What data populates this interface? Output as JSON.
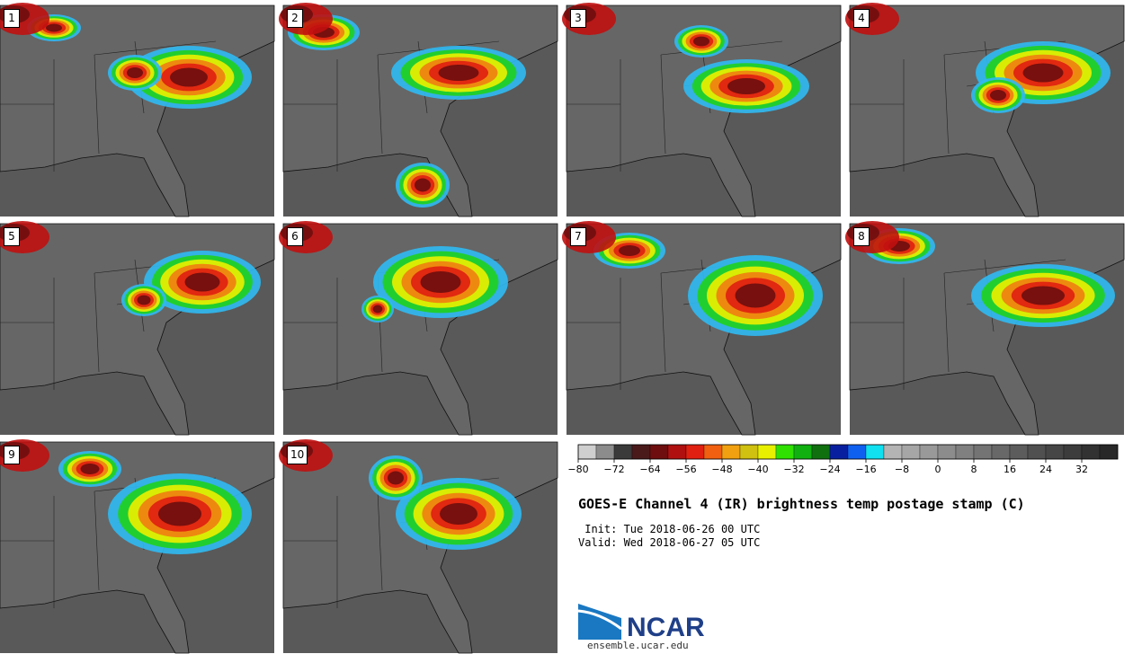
{
  "title": "GOES-E Channel 4 (IR) brightness temp postage stamp (C)",
  "init_line": " Init: Tue 2018-06-26 00 UTC",
  "valid_line": "Valid: Wed 2018-06-27 05 UTC",
  "logo_text": "NCAR",
  "url": "ensemble.ucar.edu",
  "panels": [
    {
      "label": "1"
    },
    {
      "label": "2"
    },
    {
      "label": "3"
    },
    {
      "label": "4"
    },
    {
      "label": "5"
    },
    {
      "label": "6"
    },
    {
      "label": "7"
    },
    {
      "label": "8"
    },
    {
      "label": "9"
    },
    {
      "label": "10"
    }
  ],
  "colorbar": {
    "ticks": [
      "-80",
      "-72",
      "-64",
      "-56",
      "-48",
      "-40",
      "-32",
      "-24",
      "-16",
      "-8",
      "0",
      "8",
      "16",
      "24",
      "32"
    ],
    "colors": [
      "#cfcfcf",
      "#8c8c8c",
      "#3a3a3a",
      "#4a1a1a",
      "#6e0e0e",
      "#b01010",
      "#e02010",
      "#f06010",
      "#f0a010",
      "#d0c010",
      "#e8f000",
      "#30e000",
      "#10b010",
      "#107010",
      "#0820a0",
      "#1060f0",
      "#10e0f0",
      "#b4b4b4",
      "#a6a6a6",
      "#999999",
      "#8c8c8c",
      "#808080",
      "#747474",
      "#686868",
      "#5c5c5c",
      "#505050",
      "#464646",
      "#3c3c3c",
      "#323232",
      "#282828"
    ]
  }
}
